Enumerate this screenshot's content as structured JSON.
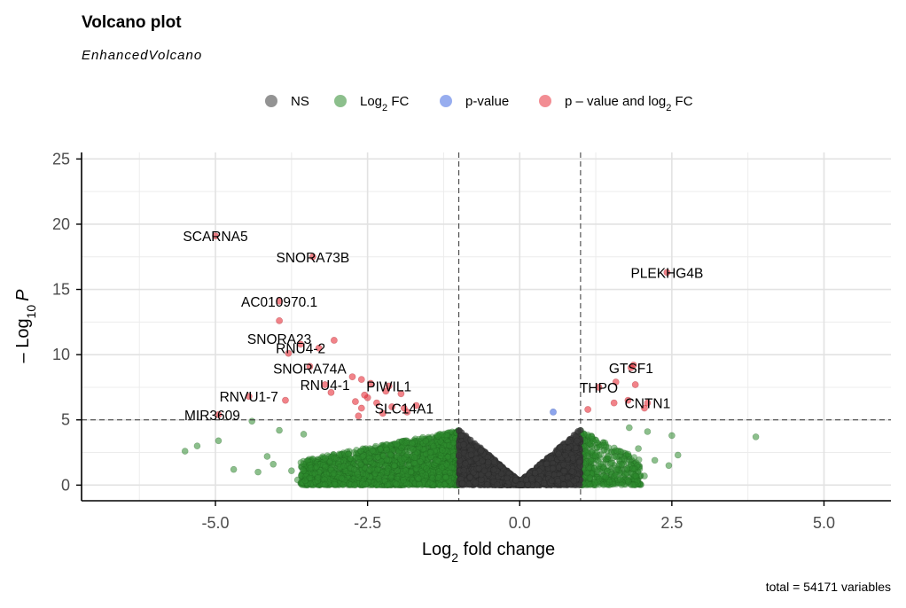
{
  "chart_data": {
    "type": "scatter",
    "title": "Volcano plot",
    "subtitle": "EnhancedVolcano",
    "xlabel_main": "Log",
    "xlabel_sub": "2",
    "xlabel_rest": " fold change",
    "ylabel_minus": "–",
    "ylabel_main": " Log",
    "ylabel_sub": "10",
    "ylabel_p": "P",
    "caption": "total = 54171 variables",
    "xlim": [
      -7.2,
      6.1
    ],
    "ylim": [
      -1.2,
      25.5
    ],
    "x_ticks": [
      -5.0,
      -2.5,
      0.0,
      2.5,
      5.0
    ],
    "x_tick_labels": [
      "-5.0",
      "-2.5",
      "0.0",
      "2.5",
      "5.0"
    ],
    "y_ticks": [
      0,
      5,
      10,
      15,
      20,
      25
    ],
    "y_tick_labels": [
      "0",
      "5",
      "10",
      "15",
      "20",
      "25"
    ],
    "fc_cutoff": 1.0,
    "p_cutoff_neglog10": 5.0,
    "grid": true,
    "legend_position": "top",
    "colors": {
      "NS": "#3a3a3a",
      "Log2FC": "#2e8b2e",
      "pvalue": "#4169e1",
      "both": "#e8303a"
    },
    "legend": [
      {
        "key": "NS",
        "label_main": "NS",
        "label_sub": "",
        "label_rest": ""
      },
      {
        "key": "Log2FC",
        "label_main": "Log",
        "label_sub": "2",
        "label_rest": " FC"
      },
      {
        "key": "pvalue",
        "label_main": "p-value",
        "label_sub": "",
        "label_rest": ""
      },
      {
        "key": "both",
        "label_main": "p – value and log",
        "label_sub": "2",
        "label_rest": " FC"
      }
    ],
    "labeled_points": [
      {
        "label": "SCARNA5",
        "x": -5.0,
        "y": 19.1
      },
      {
        "label": "SNORA73B",
        "x": -3.4,
        "y": 17.5
      },
      {
        "label": "PLEKHG4B",
        "x": 2.42,
        "y": 16.3
      },
      {
        "label": "AC010970.1",
        "x": -3.95,
        "y": 14.1
      },
      {
        "label": "SNORA23",
        "x": -3.95,
        "y": 12.6
      },
      {
        "label": "RNU4-2",
        "x": -3.6,
        "y": 10.8
      },
      {
        "label": "SNORA74A",
        "x": -3.45,
        "y": 9.1
      },
      {
        "label": "GTSF1",
        "x": 1.83,
        "y": 9.0
      },
      {
        "label": "RNU4-1",
        "x": -3.2,
        "y": 7.7
      },
      {
        "label": "PIWIL1",
        "x": -2.15,
        "y": 7.6
      },
      {
        "label": "THPO",
        "x": 1.3,
        "y": 7.5
      },
      {
        "label": "RNVU1-7",
        "x": -4.45,
        "y": 6.8
      },
      {
        "label": "CNTN1",
        "x": 2.1,
        "y": 6.3
      },
      {
        "label": "SLC14A1",
        "x": -1.9,
        "y": 5.9
      },
      {
        "label": "MIR3609",
        "x": -4.95,
        "y": 5.4
      }
    ],
    "highlight_points": [
      {
        "x": -3.05,
        "y": 11.1
      },
      {
        "x": -3.3,
        "y": 10.5
      },
      {
        "x": -3.8,
        "y": 10.1
      },
      {
        "x": -2.6,
        "y": 8.1
      },
      {
        "x": -2.45,
        "y": 7.8
      },
      {
        "x": -2.2,
        "y": 7.2
      },
      {
        "x": -2.75,
        "y": 8.3
      },
      {
        "x": -3.1,
        "y": 7.1
      },
      {
        "x": -2.5,
        "y": 6.7
      },
      {
        "x": -2.55,
        "y": 6.9
      },
      {
        "x": -2.7,
        "y": 6.4
      },
      {
        "x": -2.35,
        "y": 6.3
      },
      {
        "x": -2.1,
        "y": 6.0
      },
      {
        "x": -2.6,
        "y": 5.9
      },
      {
        "x": -2.65,
        "y": 5.3
      },
      {
        "x": -1.85,
        "y": 5.6
      },
      {
        "x": -2.25,
        "y": 5.5
      },
      {
        "x": -3.85,
        "y": 6.5
      },
      {
        "x": -1.95,
        "y": 7.0
      },
      {
        "x": -1.7,
        "y": 6.1
      },
      {
        "x": 1.87,
        "y": 9.2
      },
      {
        "x": 1.9,
        "y": 7.7
      },
      {
        "x": 1.58,
        "y": 7.9
      },
      {
        "x": 1.55,
        "y": 6.3
      },
      {
        "x": 1.78,
        "y": 6.5
      },
      {
        "x": 2.05,
        "y": 5.9
      },
      {
        "x": 1.12,
        "y": 5.8
      }
    ],
    "pvalue_points": [
      {
        "x": 0.55,
        "y": 5.6
      }
    ],
    "fc_only_points": [
      {
        "x": -5.5,
        "y": 2.6
      },
      {
        "x": -5.3,
        "y": 3.0
      },
      {
        "x": -4.95,
        "y": 3.4
      },
      {
        "x": -4.3,
        "y": 1.0
      },
      {
        "x": -4.7,
        "y": 1.2
      },
      {
        "x": -4.15,
        "y": 2.2
      },
      {
        "x": -3.75,
        "y": 1.1
      },
      {
        "x": -3.65,
        "y": 0.4
      },
      {
        "x": -4.4,
        "y": 4.9
      },
      {
        "x": -3.95,
        "y": 4.2
      },
      {
        "x": -3.55,
        "y": 3.9
      },
      {
        "x": -4.05,
        "y": 1.6
      },
      {
        "x": 3.88,
        "y": 3.7
      },
      {
        "x": 2.5,
        "y": 3.8
      },
      {
        "x": 2.22,
        "y": 1.9
      },
      {
        "x": 2.45,
        "y": 1.5
      },
      {
        "x": 2.05,
        "y": 0.7
      },
      {
        "x": 2.1,
        "y": 4.1
      },
      {
        "x": 1.95,
        "y": 2.8
      },
      {
        "x": 2.6,
        "y": 2.3
      },
      {
        "x": 1.8,
        "y": 4.4
      }
    ],
    "fc_dense_cloud": {
      "left_x": [
        -3.6,
        -1.0
      ],
      "right_x": [
        1.0,
        2.0
      ],
      "y": [
        0,
        4.2
      ],
      "n_left": 2600,
      "n_right": 500
    },
    "ns_cloud": {
      "x": [
        -1.0,
        1.0
      ],
      "y_peak": 4.0,
      "n": 2200
    }
  }
}
